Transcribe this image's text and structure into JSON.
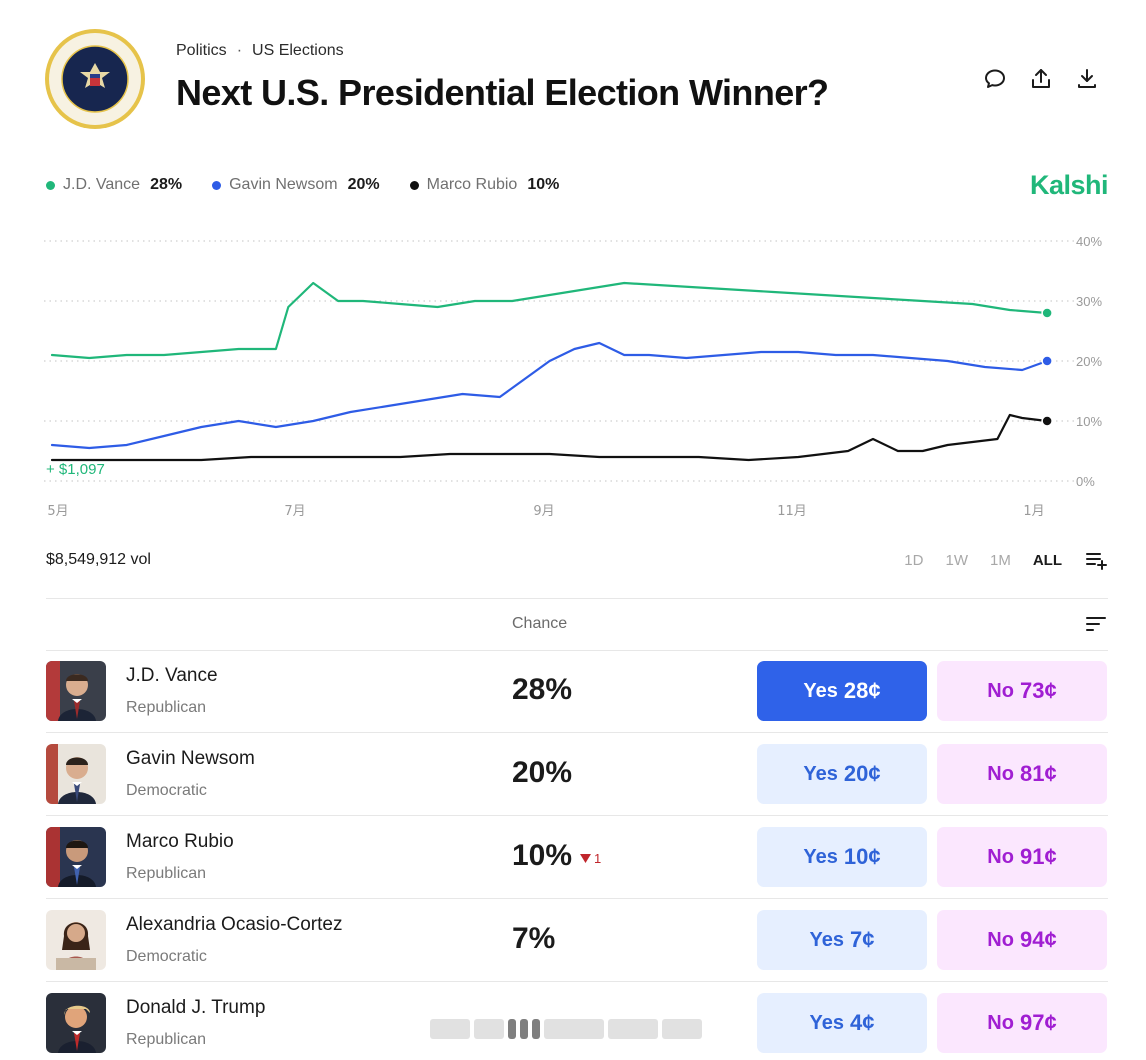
{
  "header": {
    "breadcrumb": [
      "Politics",
      "US Elections"
    ],
    "breadcrumb_separator": "·",
    "title": "Next U.S. Presidential Election Winner?"
  },
  "icons": {
    "seal": "presidential-seal",
    "comment": "comment-icon",
    "share": "share-icon",
    "download": "download-icon",
    "sort": "sort-icon",
    "add_to_list": "playlist-add-icon",
    "decrease": "triangle-down-icon"
  },
  "brand": {
    "name": "Kalshi",
    "color": "#20b77a"
  },
  "legend": [
    {
      "name": "J.D. Vance",
      "pct": "28%",
      "color": "#20b77a"
    },
    {
      "name": "Gavin Newsom",
      "pct": "20%",
      "color": "#2e5ce6"
    },
    {
      "name": "Marco Rubio",
      "pct": "10%",
      "color": "#111111"
    }
  ],
  "chart_data": {
    "type": "line",
    "x_tick_labels": [
      "5月",
      "7月",
      "9月",
      "11月",
      "1月"
    ],
    "y_tick_labels": [
      "40%",
      "30%",
      "20%",
      "10%",
      "0%"
    ],
    "ylim": [
      0,
      40
    ],
    "grid": true,
    "annotation": "+ $1,097",
    "x_range": [
      0,
      8.2
    ],
    "series": [
      {
        "name": "J.D. Vance",
        "color": "#20b77a",
        "x": [
          0,
          0.3,
          0.6,
          0.9,
          1.2,
          1.5,
          1.8,
          1.9,
          2.0,
          2.1,
          2.3,
          2.5,
          2.8,
          3.1,
          3.4,
          3.7,
          4.0,
          4.3,
          4.6,
          5.0,
          5.4,
          5.8,
          6.2,
          6.6,
          7.0,
          7.4,
          7.7,
          8.0
        ],
        "y": [
          21,
          20.5,
          21,
          21,
          21.5,
          22,
          22,
          29,
          31,
          33,
          30,
          30,
          29.5,
          29,
          30,
          30,
          31,
          32,
          33,
          32.5,
          32,
          31.5,
          31,
          30.5,
          30,
          29.5,
          28.5,
          28
        ]
      },
      {
        "name": "Gavin Newsom",
        "color": "#2e5ce6",
        "x": [
          0,
          0.3,
          0.6,
          0.9,
          1.2,
          1.5,
          1.8,
          2.1,
          2.4,
          2.7,
          3.0,
          3.3,
          3.6,
          3.8,
          4.0,
          4.2,
          4.4,
          4.6,
          4.8,
          5.1,
          5.4,
          5.7,
          6.0,
          6.3,
          6.6,
          6.9,
          7.2,
          7.5,
          7.8,
          8.0
        ],
        "y": [
          6,
          5.5,
          6,
          7.5,
          9,
          10,
          9,
          10,
          11.5,
          12.5,
          13.5,
          14.5,
          14,
          17,
          20,
          22,
          23,
          21,
          21,
          20.5,
          21,
          21.5,
          21.5,
          21,
          21,
          20.5,
          20,
          19,
          18.5,
          20
        ]
      },
      {
        "name": "Marco Rubio",
        "color": "#111111",
        "x": [
          0,
          0.4,
          0.8,
          1.2,
          1.6,
          2.0,
          2.4,
          2.8,
          3.2,
          3.6,
          4.0,
          4.4,
          4.8,
          5.2,
          5.6,
          6.0,
          6.4,
          6.6,
          6.8,
          7.0,
          7.2,
          7.4,
          7.6,
          7.7,
          7.8,
          8.0
        ],
        "y": [
          3.5,
          3.5,
          3.5,
          3.5,
          4,
          4,
          4,
          4,
          4.5,
          4.5,
          4.5,
          4,
          4,
          4,
          3.5,
          4,
          5,
          7,
          5,
          5,
          6,
          6.5,
          7,
          11,
          10.5,
          10
        ]
      }
    ]
  },
  "volume": "$8,549,912 vol",
  "ranges": [
    "1D",
    "1W",
    "1M",
    "ALL"
  ],
  "active_range": "ALL",
  "table": {
    "chance_header": "Chance",
    "rows": [
      {
        "name": "J.D. Vance",
        "party": "Republican",
        "chance": "28%",
        "delta": "",
        "yes_label": "Yes",
        "yes_price": "28¢",
        "no_label": "No",
        "no_price": "73¢",
        "primary": true
      },
      {
        "name": "Gavin Newsom",
        "party": "Democratic",
        "chance": "20%",
        "delta": "",
        "yes_label": "Yes",
        "yes_price": "20¢",
        "no_label": "No",
        "no_price": "81¢",
        "primary": false
      },
      {
        "name": "Marco Rubio",
        "party": "Republican",
        "chance": "10%",
        "delta": "1",
        "yes_label": "Yes",
        "yes_price": "10¢",
        "no_label": "No",
        "no_price": "91¢",
        "primary": false
      },
      {
        "name": "Alexandria Ocasio-Cortez",
        "party": "Democratic",
        "chance": "7%",
        "delta": "",
        "yes_label": "Yes",
        "yes_price": "7¢",
        "no_label": "No",
        "no_price": "94¢",
        "primary": false
      },
      {
        "name": "Donald J. Trump",
        "party": "Republican",
        "chance": "",
        "delta": "",
        "yes_label": "Yes",
        "yes_price": "4¢",
        "no_label": "No",
        "no_price": "97¢",
        "primary": false
      }
    ]
  }
}
